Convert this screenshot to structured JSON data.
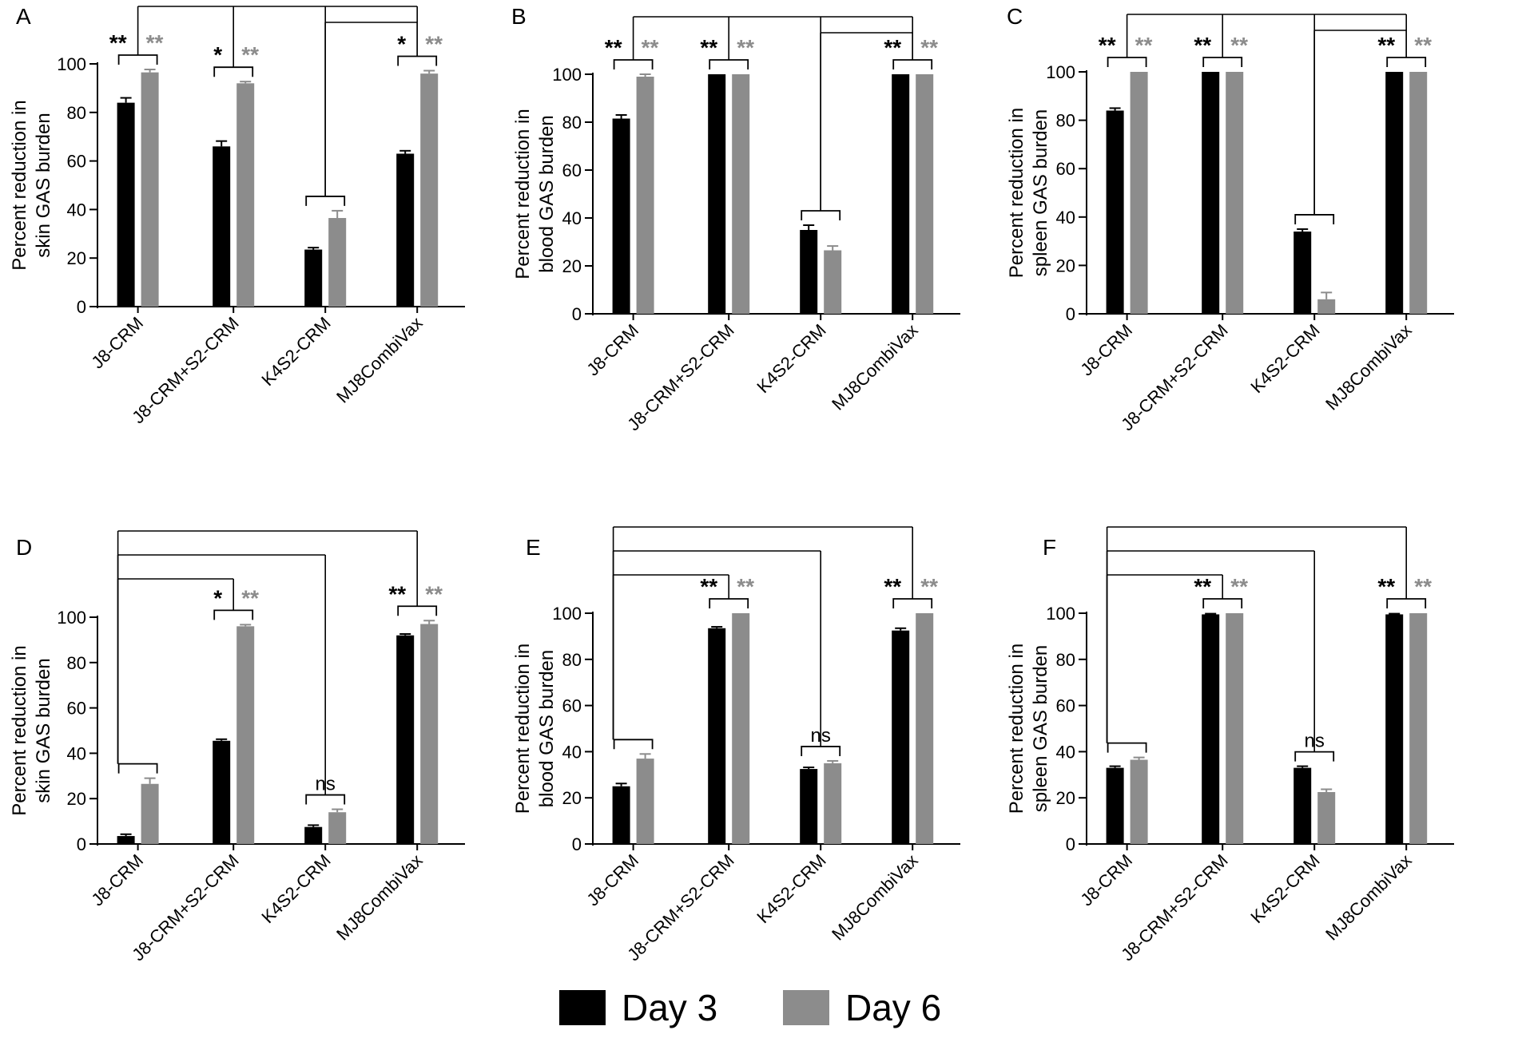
{
  "colors": {
    "day3": "#000000",
    "day6": "#8c8c8c",
    "axis": "#000000",
    "bracket": "#000000"
  },
  "legend": {
    "day3_label": "Day 3",
    "day6_label": "Day 6"
  },
  "chart_data": [
    {
      "type": "bar",
      "panel": "A",
      "ylabel_lines": [
        "Percent reduction in",
        "skin GAS burden"
      ],
      "categories": [
        "J8-CRM",
        "J8-CRM+S2-CRM",
        "K4S2-CRM",
        "MJ8CombiVax"
      ],
      "series": [
        {
          "name": "Day 3",
          "values": [
            84,
            66,
            23.5,
            63
          ],
          "errors": [
            2,
            2.2,
            0.8,
            1.2
          ]
        },
        {
          "name": "Day 6",
          "values": [
            96.5,
            92,
            36.5,
            96
          ],
          "errors": [
            1.2,
            0.7,
            3,
            1.2
          ]
        }
      ],
      "ylim": [
        0,
        100
      ],
      "yticks": [
        0,
        20,
        40,
        60,
        80,
        100
      ],
      "sig": [
        [
          "**",
          "**"
        ],
        [
          "*",
          "**"
        ],
        [
          "",
          ""
        ],
        [
          "*",
          "**"
        ]
      ]
    },
    {
      "type": "bar",
      "panel": "B",
      "ylabel_lines": [
        "Percent reduction in",
        "blood GAS burden"
      ],
      "categories": [
        "J8-CRM",
        "J8-CRM+S2-CRM",
        "K4S2-CRM",
        "MJ8CombiVax"
      ],
      "series": [
        {
          "name": "Day 3",
          "values": [
            81.5,
            100,
            35,
            100
          ],
          "errors": [
            1.5,
            0,
            2,
            0
          ]
        },
        {
          "name": "Day 6",
          "values": [
            99,
            100,
            26.5,
            100
          ],
          "errors": [
            1,
            0,
            1.8,
            0
          ]
        }
      ],
      "ylim": [
        0,
        100
      ],
      "yticks": [
        0,
        20,
        40,
        60,
        80,
        100
      ],
      "sig": [
        [
          "**",
          "**"
        ],
        [
          "**",
          "**"
        ],
        [
          "",
          ""
        ],
        [
          "**",
          "**"
        ]
      ]
    },
    {
      "type": "bar",
      "panel": "C",
      "ylabel_lines": [
        "Percent reduction in",
        "spleen GAS burden"
      ],
      "categories": [
        "J8-CRM",
        "J8-CRM+S2-CRM",
        "K4S2-CRM",
        "MJ8CombiVax"
      ],
      "series": [
        {
          "name": "Day 3",
          "values": [
            84,
            100,
            34,
            100
          ],
          "errors": [
            1,
            0,
            1,
            0
          ]
        },
        {
          "name": "Day 6",
          "values": [
            100,
            100,
            6,
            100
          ],
          "errors": [
            0,
            0,
            2.8,
            0
          ]
        }
      ],
      "ylim": [
        0,
        100
      ],
      "yticks": [
        0,
        20,
        40,
        60,
        80,
        100
      ],
      "sig": [
        [
          "**",
          "**"
        ],
        [
          "**",
          "**"
        ],
        [
          "",
          ""
        ],
        [
          "**",
          "**"
        ]
      ]
    },
    {
      "type": "bar",
      "panel": "D",
      "ylabel_lines": [
        "Percent reduction in",
        "skin GAS burden"
      ],
      "categories": [
        "J8-CRM",
        "J8-CRM+S2-CRM",
        "K4S2-CRM",
        "MJ8CombiVax"
      ],
      "series": [
        {
          "name": "Day 3",
          "values": [
            3.5,
            45.5,
            7.5,
            92
          ],
          "errors": [
            0.8,
            0.7,
            0.8,
            0.6
          ]
        },
        {
          "name": "Day 6",
          "values": [
            26.5,
            96,
            14,
            97
          ],
          "errors": [
            2.5,
            0.7,
            1.3,
            1.5
          ]
        }
      ],
      "ylim": [
        0,
        100
      ],
      "yticks": [
        0,
        20,
        40,
        60,
        80,
        100
      ],
      "sig": [
        [
          "",
          ""
        ],
        [
          "*",
          "**"
        ],
        [
          "ns",
          ""
        ],
        [
          "**",
          "**"
        ]
      ]
    },
    {
      "type": "bar",
      "panel": "E",
      "ylabel_lines": [
        "Percent reduction in",
        "blood GAS burden"
      ],
      "categories": [
        "J8-CRM",
        "J8-CRM+S2-CRM",
        "K4S2-CRM",
        "MJ8CombiVax"
      ],
      "series": [
        {
          "name": "Day 3",
          "values": [
            25,
            93.5,
            32.5,
            92.5
          ],
          "errors": [
            1.2,
            0.6,
            0.7,
            1
          ]
        },
        {
          "name": "Day 6",
          "values": [
            37,
            100,
            35,
            100
          ],
          "errors": [
            2,
            0,
            1,
            0
          ]
        }
      ],
      "ylim": [
        0,
        100
      ],
      "yticks": [
        0,
        20,
        40,
        60,
        80,
        100
      ],
      "sig": [
        [
          "",
          ""
        ],
        [
          "**",
          "**"
        ],
        [
          "ns",
          ""
        ],
        [
          "**",
          "**"
        ]
      ]
    },
    {
      "type": "bar",
      "panel": "F",
      "ylabel_lines": [
        "Percent reduction in",
        "spleen GAS burden"
      ],
      "categories": [
        "J8-CRM",
        "J8-CRM+S2-CRM",
        "K4S2-CRM",
        "MJ8CombiVax"
      ],
      "series": [
        {
          "name": "Day 3",
          "values": [
            33,
            99.5,
            33,
            99.5
          ],
          "errors": [
            0.7,
            0.3,
            0.7,
            0.3
          ]
        },
        {
          "name": "Day 6",
          "values": [
            36.5,
            100,
            22.5,
            100
          ],
          "errors": [
            1,
            0,
            1.2,
            0
          ]
        }
      ],
      "ylim": [
        0,
        100
      ],
      "yticks": [
        0,
        20,
        40,
        60,
        80,
        100
      ],
      "sig": [
        [
          "",
          ""
        ],
        [
          "**",
          "**"
        ],
        [
          "ns",
          ""
        ],
        [
          "**",
          "**"
        ]
      ]
    }
  ]
}
